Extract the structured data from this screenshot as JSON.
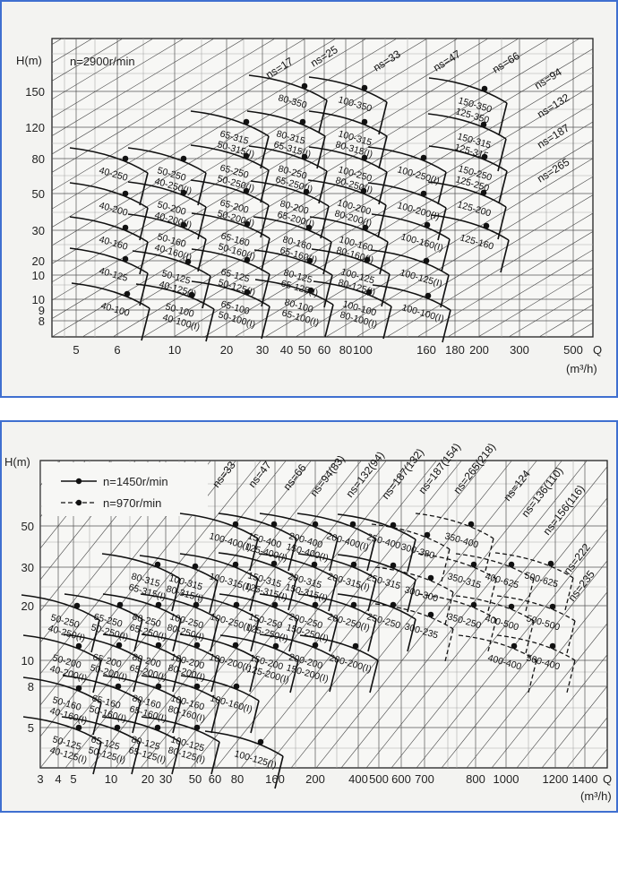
{
  "chart_data": [
    {
      "type": "line",
      "speed_label": "n=2900r/min",
      "ylabel": "H(m)",
      "xlabel": "Q",
      "x_unit": "(m³/h)",
      "y_ticks": [
        "150",
        "120",
        "80",
        "50",
        "30",
        "20",
        "10",
        "10",
        "9",
        "8"
      ],
      "x_ticks": [
        "5",
        "6",
        "10",
        "20",
        "30",
        "40",
        "50",
        "60",
        "80",
        "100",
        "160",
        "180",
        "200",
        "300",
        "500"
      ],
      "ns_lines": [
        "ns=17",
        "ns=25",
        "ns=33",
        "ns=47",
        "ns=66",
        "ns=94",
        "ns=132",
        "ns=187",
        "ns=265"
      ],
      "models": [
        {
          "labels": [
            "80-350"
          ],
          "H": 150
        },
        {
          "labels": [
            "100-350"
          ],
          "H": 150
        },
        {
          "labels": [
            "150-350",
            "125-350"
          ],
          "H": 150
        },
        {
          "labels": [
            "65-315",
            "50-315(I)"
          ],
          "H": 120
        },
        {
          "labels": [
            "80-315",
            "65-315(I)"
          ],
          "H": 120
        },
        {
          "labels": [
            "100-315",
            "80-315(I)"
          ],
          "H": 120
        },
        {
          "labels": [
            "150-315",
            "125-315"
          ],
          "H": 120
        },
        {
          "labels": [
            "40-250"
          ],
          "H": 80
        },
        {
          "labels": [
            "50-250",
            "40-250(I)"
          ],
          "H": 80
        },
        {
          "labels": [
            "65-250",
            "50-250(I)"
          ],
          "H": 80
        },
        {
          "labels": [
            "80-250",
            "65-250(I)"
          ],
          "H": 80
        },
        {
          "labels": [
            "100-250",
            "80-250(I)"
          ],
          "H": 80
        },
        {
          "labels": [
            "100-250(I)"
          ],
          "H": 80
        },
        {
          "labels": [
            "150-250",
            "125-250"
          ],
          "H": 80
        },
        {
          "labels": [
            "40-200"
          ],
          "H": 50
        },
        {
          "labels": [
            "50-200",
            "40-200(I)"
          ],
          "H": 50
        },
        {
          "labels": [
            "65-200",
            "50-200(I)"
          ],
          "H": 50
        },
        {
          "labels": [
            "80-200",
            "65-200(I)"
          ],
          "H": 50
        },
        {
          "labels": [
            "100-200",
            "80-200(I)"
          ],
          "H": 50
        },
        {
          "labels": [
            "100-200(I)"
          ],
          "H": 50
        },
        {
          "labels": [
            "125-200"
          ],
          "H": 50
        },
        {
          "labels": [
            "40-160"
          ],
          "H": 30
        },
        {
          "labels": [
            "50-160",
            "40-160(I)"
          ],
          "H": 30
        },
        {
          "labels": [
            "65-160",
            "50-160(I)"
          ],
          "H": 30
        },
        {
          "labels": [
            "80-160",
            "65-160(I)"
          ],
          "H": 30
        },
        {
          "labels": [
            "100-160",
            "80-160(I)"
          ],
          "H": 30
        },
        {
          "labels": [
            "100-160(I)"
          ],
          "H": 30
        },
        {
          "labels": [
            "125-160"
          ],
          "H": 30
        },
        {
          "labels": [
            "40-125"
          ],
          "H": 20
        },
        {
          "labels": [
            "50-125",
            "40-125(I)"
          ],
          "H": 20
        },
        {
          "labels": [
            "65-125",
            "50-125(I)"
          ],
          "H": 20
        },
        {
          "labels": [
            "80-125",
            "65-125(I)"
          ],
          "H": 20
        },
        {
          "labels": [
            "100-125",
            "80-125(I)"
          ],
          "H": 20
        },
        {
          "labels": [
            "100-125(I)"
          ],
          "H": 20
        },
        {
          "labels": [
            "40-100"
          ],
          "H": 10
        },
        {
          "labels": [
            "50-100",
            "40-100(I)"
          ],
          "H": 10
        },
        {
          "labels": [
            "65-100",
            "50-100(I)"
          ],
          "H": 10
        },
        {
          "labels": [
            "80-100",
            "65-100(I)"
          ],
          "H": 10
        },
        {
          "labels": [
            "100-100",
            "80-100(I)"
          ],
          "H": 10
        },
        {
          "labels": [
            "100-100(I)"
          ],
          "H": 10
        }
      ]
    },
    {
      "type": "line",
      "ylabel": "H(m)",
      "xlabel": "Q",
      "x_unit": "(m³/h)",
      "legend": [
        {
          "label": "n=1450r/min",
          "style": "solid"
        },
        {
          "label": "n=970r/min",
          "style": "dashed"
        }
      ],
      "y_ticks": [
        "50",
        "30",
        "20",
        "10",
        "8",
        "5"
      ],
      "x_ticks": [
        "3",
        "4",
        "5",
        "10",
        "20",
        "30",
        "50",
        "60",
        "80",
        "160",
        "200",
        "400",
        "500",
        "600",
        "700",
        "800",
        "1000",
        "1200",
        "1400"
      ],
      "ns_lines": [
        "ns=33",
        "ns=47",
        "ns=66",
        "ns=94(83)",
        "ns=132(94)",
        "ns=187(132)",
        "ns=187(154)",
        "ns=265(218)",
        "ns=124",
        "ns=136(110)",
        "ns=156(116)",
        "ns=222",
        "ns=235"
      ],
      "models": [
        {
          "labels": [
            "100-400(I)"
          ],
          "H": 50,
          "speed": 1450
        },
        {
          "labels": [
            "150-400",
            "125-400(I)"
          ],
          "H": 50,
          "speed": 1450
        },
        {
          "labels": [
            "200-400",
            "150-400(I)"
          ],
          "H": 50,
          "speed": 1450
        },
        {
          "labels": [
            "200-400(I)"
          ],
          "H": 50,
          "speed": 1450
        },
        {
          "labels": [
            "250-400"
          ],
          "H": 50,
          "speed": 1450
        },
        {
          "labels": [
            "300-380"
          ],
          "H": 50,
          "speed": 970
        },
        {
          "labels": [
            "350-400"
          ],
          "H": 50,
          "speed": 970
        },
        {
          "labels": [
            "80-315",
            "65-315(I)"
          ],
          "H": 30,
          "speed": 1450
        },
        {
          "labels": [
            "100-315",
            "80-315(I)"
          ],
          "H": 30,
          "speed": 1450
        },
        {
          "labels": [
            "100-315(I)"
          ],
          "H": 30,
          "speed": 1450
        },
        {
          "labels": [
            "150-315",
            "125-315(I)"
          ],
          "H": 30,
          "speed": 1450
        },
        {
          "labels": [
            "200-315",
            "150-315(I)"
          ],
          "H": 30,
          "speed": 1450
        },
        {
          "labels": [
            "200-315(I)"
          ],
          "H": 30,
          "speed": 1450
        },
        {
          "labels": [
            "250-315"
          ],
          "H": 30,
          "speed": 1450
        },
        {
          "labels": [
            "300-300"
          ],
          "H": 30,
          "speed": 970
        },
        {
          "labels": [
            "350-315"
          ],
          "H": 30,
          "speed": 970
        },
        {
          "labels": [
            "400-625"
          ],
          "H": 30,
          "speed": 970
        },
        {
          "labels": [
            "500-625"
          ],
          "H": 30,
          "speed": 970
        },
        {
          "labels": [
            "50-250",
            "40-250(I)"
          ],
          "H": 20,
          "speed": 1450
        },
        {
          "labels": [
            "65-250",
            "50-250(I)"
          ],
          "H": 20,
          "speed": 1450
        },
        {
          "labels": [
            "80-250",
            "65-250(I)"
          ],
          "H": 20,
          "speed": 1450
        },
        {
          "labels": [
            "100-250",
            "80-250(I)"
          ],
          "H": 20,
          "speed": 1450
        },
        {
          "labels": [
            "100-250(I)"
          ],
          "H": 20,
          "speed": 1450
        },
        {
          "labels": [
            "150-250",
            "125-250(I)"
          ],
          "H": 20,
          "speed": 1450
        },
        {
          "labels": [
            "200-250",
            "150-250(I)"
          ],
          "H": 20,
          "speed": 1450
        },
        {
          "labels": [
            "200-250(I)"
          ],
          "H": 20,
          "speed": 1450
        },
        {
          "labels": [
            "250-250"
          ],
          "H": 20,
          "speed": 1450
        },
        {
          "labels": [
            "300-235"
          ],
          "H": 20,
          "speed": 970
        },
        {
          "labels": [
            "350-250"
          ],
          "H": 20,
          "speed": 970
        },
        {
          "labels": [
            "400-500"
          ],
          "H": 20,
          "speed": 970
        },
        {
          "labels": [
            "500-500"
          ],
          "H": 20,
          "speed": 970
        },
        {
          "labels": [
            "50-200",
            "40-200(I)"
          ],
          "H": 10,
          "speed": 1450
        },
        {
          "labels": [
            "65-200",
            "50-200(I)"
          ],
          "H": 10,
          "speed": 1450
        },
        {
          "labels": [
            "80-200",
            "65-200(I)"
          ],
          "H": 10,
          "speed": 1450
        },
        {
          "labels": [
            "100-200",
            "80-200(I)"
          ],
          "H": 10,
          "speed": 1450
        },
        {
          "labels": [
            "100-200(I)"
          ],
          "H": 10,
          "speed": 1450
        },
        {
          "labels": [
            "150-200",
            "125-200(I)"
          ],
          "H": 10,
          "speed": 1450
        },
        {
          "labels": [
            "200-200",
            "150-200(I)"
          ],
          "H": 10,
          "speed": 1450
        },
        {
          "labels": [
            "200-200(I)"
          ],
          "H": 10,
          "speed": 1450
        },
        {
          "labels": [
            "400-400"
          ],
          "H": 10,
          "speed": 970
        },
        {
          "labels": [
            "500-400"
          ],
          "H": 10,
          "speed": 970
        },
        {
          "labels": [
            "50-160",
            "40-160(I)"
          ],
          "H": 8,
          "speed": 1450
        },
        {
          "labels": [
            "65-160",
            "50-160(I)"
          ],
          "H": 8,
          "speed": 1450
        },
        {
          "labels": [
            "80-160",
            "65-160(I)"
          ],
          "H": 8,
          "speed": 1450
        },
        {
          "labels": [
            "100-160",
            "80-160(I)"
          ],
          "H": 8,
          "speed": 1450
        },
        {
          "labels": [
            "100-160(I)"
          ],
          "H": 8,
          "speed": 1450
        },
        {
          "labels": [
            "50-125",
            "40-125(I)"
          ],
          "H": 5,
          "speed": 1450
        },
        {
          "labels": [
            "65-125",
            "50-125(I)"
          ],
          "H": 5,
          "speed": 1450
        },
        {
          "labels": [
            "80-125",
            "65-125(I)"
          ],
          "H": 5,
          "speed": 1450
        },
        {
          "labels": [
            "100-125",
            "80-125(I)"
          ],
          "H": 5,
          "speed": 1450
        },
        {
          "labels": [
            "100-125(I)"
          ],
          "H": 5,
          "speed": 1450
        }
      ]
    }
  ]
}
